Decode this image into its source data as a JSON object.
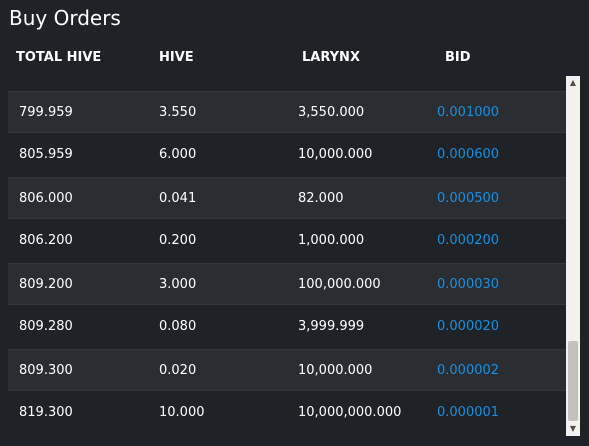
{
  "title": "Buy Orders",
  "columns": [
    "TOTAL HIVE",
    "HIVE",
    "LARYNX",
    "BID"
  ],
  "rows": [
    [
      "799.959",
      "3.550",
      "3,550.000",
      "0.001000"
    ],
    [
      "805.959",
      "6.000",
      "10,000.000",
      "0.000600"
    ],
    [
      "806.000",
      "0.041",
      "82.000",
      "0.000500"
    ],
    [
      "806.200",
      "0.200",
      "1,000.000",
      "0.000200"
    ],
    [
      "809.200",
      "3.000",
      "100,000.000",
      "0.000030"
    ],
    [
      "809.280",
      "0.080",
      "3,999.999",
      "0.000020"
    ],
    [
      "809.300",
      "0.020",
      "10,000.000",
      "0.000002"
    ],
    [
      "819.300",
      "10.000",
      "10,000,000.000",
      "0.000001"
    ]
  ],
  "scrollbar": {
    "up_icon": "▲",
    "down_icon": "▼"
  }
}
